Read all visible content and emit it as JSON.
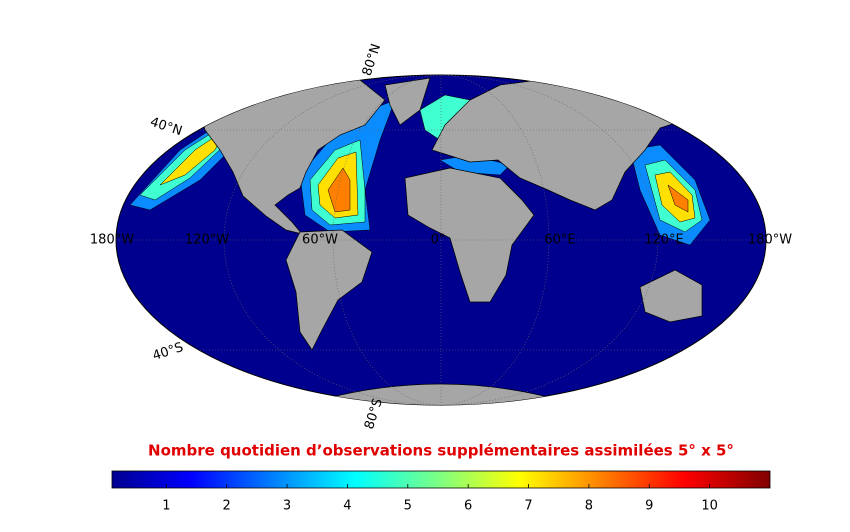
{
  "map": {
    "title": "Nombre quotidien d’observations supplémentaires assimilées 5° x 5°",
    "graticule_labels": {
      "lat_80n": "80°N",
      "lat_40n": "40°N",
      "lon_180w_left": "180°W",
      "lon_120w": "120°W",
      "lon_60w": "60°W",
      "lon_0": "0°",
      "lon_60e": "60°E",
      "lon_120e": "120°E",
      "lon_180w_right": "180°W",
      "lat_40s": "40°S",
      "lat_80s": "80°S"
    }
  },
  "colorbar": {
    "lim": [
      0.1,
      11
    ],
    "ticks": [
      1,
      2,
      3,
      4,
      5,
      6,
      7,
      8,
      9,
      10
    ]
  }
}
